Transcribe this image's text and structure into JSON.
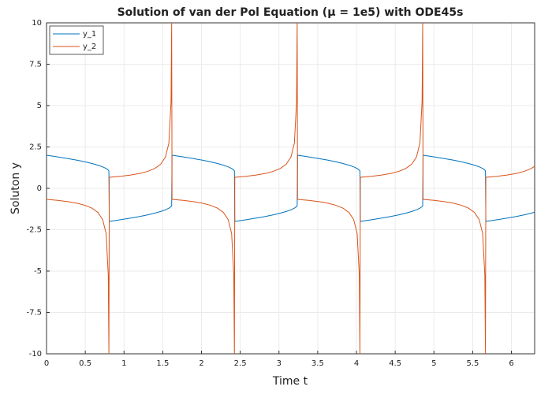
{
  "chart_data": {
    "type": "line",
    "title": "Solution of van der Pol Equation (μ = 1e5) with ODE45s",
    "x_label": "Time t",
    "y_label": "Soluton y",
    "x": [
      0,
      0.144,
      0.275,
      0.393,
      0.497,
      0.587,
      0.663,
      0.724,
      0.769,
      0.797,
      0.805,
      0.81,
      0.954,
      1.085,
      1.203,
      1.307,
      1.397,
      1.473,
      1.534,
      1.579,
      1.607,
      1.615,
      1.62,
      1.764,
      1.895,
      2.013,
      2.117,
      2.207,
      2.283,
      2.344,
      2.389,
      2.417,
      2.425,
      2.43,
      2.574,
      2.705,
      2.823,
      2.927,
      3.017,
      3.093,
      3.154,
      3.199,
      3.227,
      3.235,
      3.24,
      3.384,
      3.515,
      3.633,
      3.737,
      3.827,
      3.903,
      3.964,
      4.009,
      4.037,
      4.045,
      4.05,
      4.194,
      4.325,
      4.443,
      4.547,
      4.637,
      4.713,
      4.774,
      4.819,
      4.847,
      4.855,
      4.86,
      5.004,
      5.135,
      5.253,
      5.357,
      5.447,
      5.523,
      5.584,
      5.629,
      5.657,
      5.665,
      5.67,
      5.814,
      5.945,
      6.063,
      6.167,
      6.257,
      6.3
    ],
    "series": [
      {
        "name": "y_1",
        "color": "#0072bd",
        "values": [
          2,
          1.9,
          1.8,
          1.7,
          1.6,
          1.5,
          1.4,
          1.3,
          1.2,
          1.1,
          1.05,
          -2,
          -1.9,
          -1.8,
          -1.7,
          -1.6,
          -1.5,
          -1.4,
          -1.3,
          -1.2,
          -1.1,
          -1.05,
          2,
          1.9,
          1.8,
          1.7,
          1.6,
          1.5,
          1.4,
          1.3,
          1.2,
          1.1,
          1.05,
          -2,
          -1.9,
          -1.8,
          -1.7,
          -1.6,
          -1.5,
          -1.4,
          -1.3,
          -1.2,
          -1.1,
          -1.05,
          2,
          1.9,
          1.8,
          1.7,
          1.6,
          1.5,
          1.4,
          1.3,
          1.2,
          1.1,
          1.05,
          -2,
          -1.9,
          -1.8,
          -1.7,
          -1.6,
          -1.5,
          -1.4,
          -1.3,
          -1.2,
          -1.1,
          -1.05,
          2,
          1.9,
          1.8,
          1.7,
          1.6,
          1.5,
          1.4,
          1.3,
          1.2,
          1.1,
          1.05,
          -2,
          -1.9,
          -1.8,
          -1.7,
          -1.6,
          -1.5,
          -1.44
        ]
      },
      {
        "name": "y_2",
        "color": "#d95319",
        "values": [
          -0.667,
          -0.728,
          -0.804,
          -0.899,
          -1.026,
          -1.2,
          -1.458,
          -1.884,
          -2.727,
          -5.238,
          -10,
          0.667,
          0.728,
          0.804,
          0.899,
          1.026,
          1.2,
          1.458,
          1.884,
          2.727,
          5.238,
          10,
          -0.667,
          -0.728,
          -0.804,
          -0.899,
          -1.026,
          -1.2,
          -1.458,
          -1.884,
          -2.727,
          -5.238,
          -10,
          0.667,
          0.728,
          0.804,
          0.899,
          1.026,
          1.2,
          1.458,
          1.884,
          2.727,
          5.238,
          10,
          -0.667,
          -0.728,
          -0.804,
          -0.899,
          -1.026,
          -1.2,
          -1.458,
          -1.884,
          -2.727,
          -5.238,
          -10,
          0.667,
          0.728,
          0.804,
          0.899,
          1.026,
          1.2,
          1.458,
          1.884,
          2.727,
          5.238,
          10,
          -0.667,
          -0.728,
          -0.804,
          -0.899,
          -1.026,
          -1.2,
          -1.458,
          -1.884,
          -2.727,
          -5.238,
          -10,
          0.667,
          0.728,
          0.804,
          0.899,
          1.026,
          1.2,
          1.33
        ]
      }
    ],
    "xlim": [
      0,
      6.3
    ],
    "ylim": [
      -10,
      10
    ],
    "xticks": [
      0,
      0.5,
      1,
      1.5,
      2,
      2.5,
      3,
      3.5,
      4,
      4.5,
      5,
      5.5,
      6
    ],
    "yticks": [
      -10,
      -7.5,
      -5,
      -2.5,
      0,
      2.5,
      5,
      7.5,
      10
    ],
    "grid": true,
    "legend": "top-left"
  }
}
